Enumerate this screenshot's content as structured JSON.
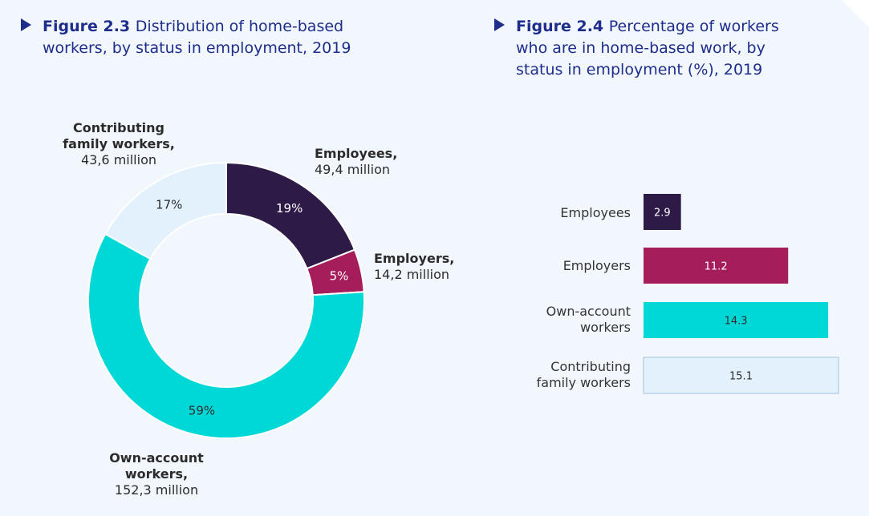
{
  "fig1": {
    "number": "Figure 2.3",
    "title": "Distribution of home-based workers, by status in employment, 2019",
    "title_line1": "Distribution of home-based",
    "title_line2": "workers, by status in employment, 2019"
  },
  "fig2": {
    "number": "Figure 2.4",
    "title_line1": "Percentage of workers",
    "title_line2": "who are in home-based work, by",
    "title_line3": "status in employment (%), 2019"
  },
  "donut_labels": {
    "employees": {
      "name": "Employees,",
      "value": "49,4 million"
    },
    "employers": {
      "name": "Employers,",
      "value": "14,2 million"
    },
    "own_account": {
      "name1": "Own-account",
      "name2": "workers,",
      "value": "152,3 million"
    },
    "contributing": {
      "name1": "Contributing",
      "name2": "family workers,",
      "value": "43,6 million"
    }
  },
  "bar_labels": {
    "employees": "Employees",
    "employers": "Employers",
    "own_account_1": "Own-account",
    "own_account_2": "workers",
    "contributing_1": "Contributing",
    "contributing_2": "family workers"
  },
  "colors": {
    "employees": "#2e1a47",
    "employers": "#a51d5a",
    "own_account": "#00d7d7",
    "contributing": "#e2f1fb",
    "contributing_stroke": "#bcd3e6",
    "title": "#1e2d8c"
  },
  "chart_data": [
    {
      "type": "pie",
      "categories": [
        "Employees",
        "Employers",
        "Own-account workers",
        "Contributing family workers"
      ],
      "values": [
        19,
        5,
        59,
        17
      ],
      "value_labels": [
        "19%",
        "5%",
        "59%",
        "17%"
      ],
      "absolute_values_million": [
        49.4,
        14.2,
        152.3,
        43.6
      ],
      "donut": true
    },
    {
      "type": "bar",
      "orientation": "horizontal",
      "categories": [
        "Employees",
        "Employers",
        "Own-account workers",
        "Contributing family workers"
      ],
      "values": [
        2.9,
        11.2,
        14.3,
        15.1
      ],
      "value_labels": [
        "2.9",
        "11.2",
        "14.3",
        "15.1"
      ]
    }
  ]
}
